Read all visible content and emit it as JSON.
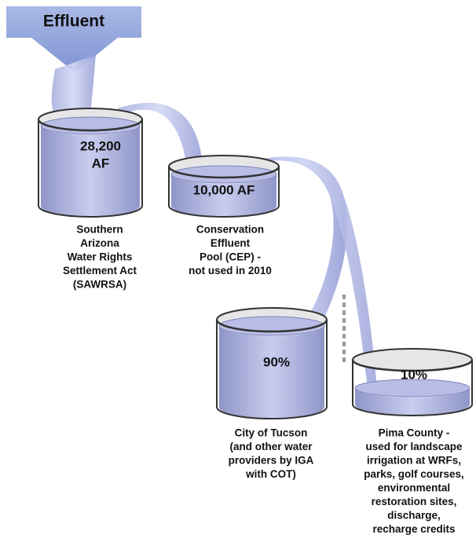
{
  "header": {
    "title": "Effluent"
  },
  "tanks": [
    {
      "amount": [
        "28,200",
        "AF"
      ],
      "label": [
        "Southern",
        "Arizona",
        "Water Rights",
        "Settlement Act",
        "(SAWRSA)"
      ]
    },
    {
      "amount": [
        "10,000 AF"
      ],
      "label": [
        "Conservation",
        "Effluent",
        "Pool (CEP) -",
        "not used in 2010"
      ]
    },
    {
      "amount": [
        "90%"
      ],
      "label": [
        "City of Tucson",
        "(and other water",
        "providers by IGA",
        "with COT)"
      ]
    },
    {
      "amount": [
        "10%"
      ],
      "label": [
        "Pima County -",
        "used for landscape",
        "irrigation at WRFs,",
        "parks, golf courses,",
        "environmental",
        "restoration sites,",
        "discharge,",
        "recharge credits"
      ]
    }
  ]
}
